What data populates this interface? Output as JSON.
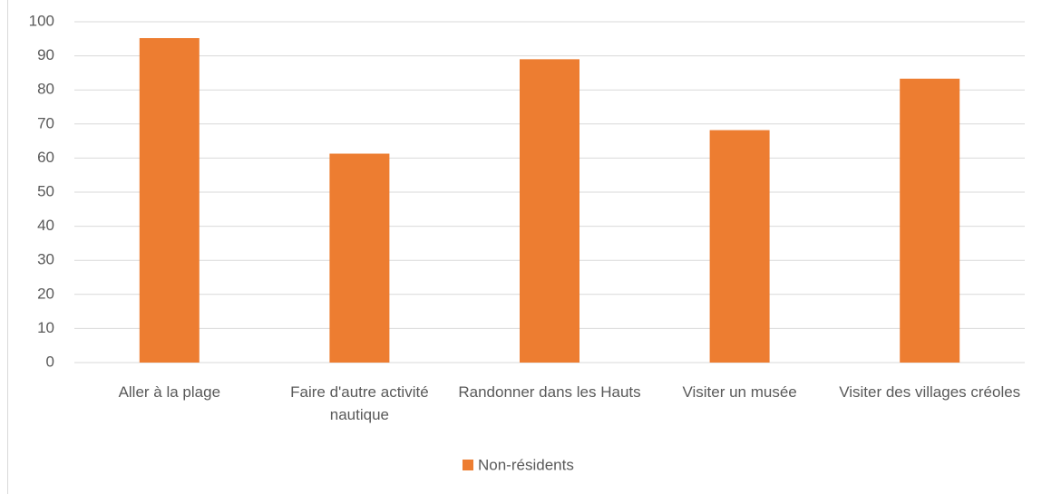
{
  "chart_data": {
    "type": "bar",
    "categories": [
      "Aller à la plage",
      "Faire d'autre activité nautique",
      "Randonner dans les Hauts",
      "Visiter un musée",
      "Visiter des villages créoles"
    ],
    "series": [
      {
        "name": "Non-résidents",
        "color": "#ed7d31",
        "values": [
          95.2,
          61.3,
          89,
          68.2,
          83.3
        ]
      }
    ],
    "ylim": [
      0,
      100
    ],
    "yticks": [
      0,
      10,
      20,
      30,
      40,
      50,
      60,
      70,
      80,
      90,
      100
    ],
    "grid": true,
    "legend": "bottom"
  }
}
